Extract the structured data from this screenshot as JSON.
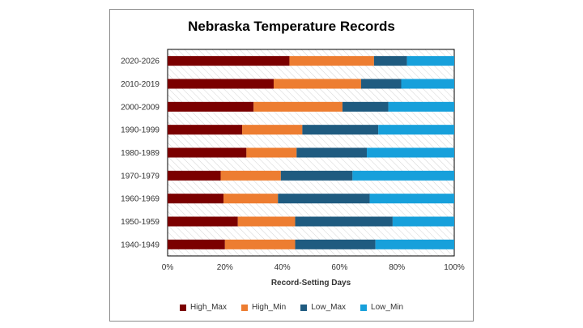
{
  "chart_data": {
    "type": "bar",
    "orientation": "horizontal",
    "stacked": "percent",
    "title": "Nebraska Temperature Records",
    "xlabel": "Record-Setting Days",
    "ylabel": "",
    "xlim": [
      0,
      100
    ],
    "x_ticks": [
      "0%",
      "20%",
      "40%",
      "60%",
      "80%",
      "100%"
    ],
    "grid": false,
    "legend_position": "bottom",
    "categories": [
      "2020-2026",
      "2010-2019",
      "2000-2009",
      "1990-1999",
      "1980-1989",
      "1970-1979",
      "1960-1969",
      "1950-1959",
      "1940-1949"
    ],
    "series": [
      {
        "name": "High_Max",
        "color": "#7b0000",
        "values": [
          42.5,
          37,
          30,
          26,
          27.5,
          18.5,
          19.5,
          24.5,
          20
        ]
      },
      {
        "name": "High_Min",
        "color": "#ed7d31",
        "values": [
          29.5,
          30.5,
          31,
          21,
          17.5,
          21,
          19,
          20,
          24.5
        ]
      },
      {
        "name": "Low_Max",
        "color": "#1f5b80",
        "values": [
          11.5,
          14,
          16,
          26.5,
          24.5,
          25,
          32,
          34,
          28
        ]
      },
      {
        "name": "Low_Min",
        "color": "#17a0db",
        "values": [
          16.5,
          18.5,
          23,
          26.5,
          30.5,
          35.5,
          29.5,
          21.5,
          27.5
        ]
      }
    ]
  }
}
